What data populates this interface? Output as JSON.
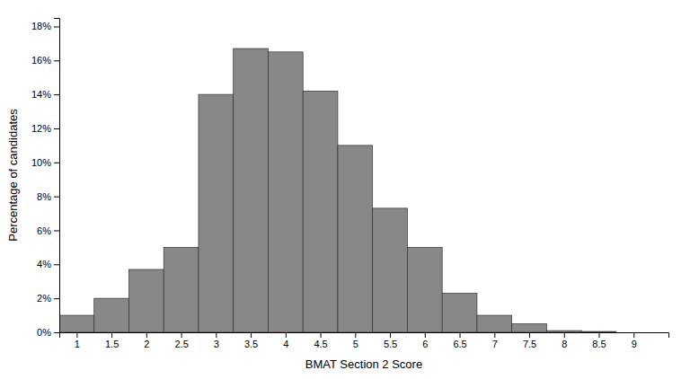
{
  "chart_data": {
    "type": "bar",
    "x": [
      1.0,
      1.5,
      2.0,
      2.5,
      3.0,
      3.5,
      4.0,
      4.5,
      5.0,
      5.5,
      6.0,
      6.5,
      7.0,
      7.5,
      8.0,
      8.5,
      9.0
    ],
    "values": [
      1.0,
      2.0,
      3.7,
      5.0,
      14.0,
      16.7,
      16.5,
      14.2,
      11.0,
      7.3,
      5.0,
      2.3,
      1.0,
      0.5,
      0.1,
      0.05,
      0.0
    ],
    "color": "#888888",
    "xlabel": "BMAT Section 2 Score",
    "ylabel": "Percentage of candidates",
    "xlim": [
      0.75,
      9.5
    ],
    "ylim": [
      0,
      18.5
    ],
    "xticks": [
      1,
      1.5,
      2,
      2.5,
      3,
      3.5,
      4,
      4.5,
      5,
      5.5,
      6,
      6.5,
      7,
      7.5,
      8,
      8.5,
      9
    ],
    "yticks": [
      {
        "value": 0,
        "label": "0%"
      },
      {
        "value": 2,
        "label": "2%"
      },
      {
        "value": 4,
        "label": "4%"
      },
      {
        "value": 6,
        "label": "6%"
      },
      {
        "value": 8,
        "label": "8%"
      },
      {
        "value": 10,
        "label": "10%"
      },
      {
        "value": 12,
        "label": "12%"
      },
      {
        "value": 14,
        "label": "14%"
      },
      {
        "value": 16,
        "label": "16%"
      },
      {
        "value": 18,
        "label": "18%"
      }
    ]
  }
}
